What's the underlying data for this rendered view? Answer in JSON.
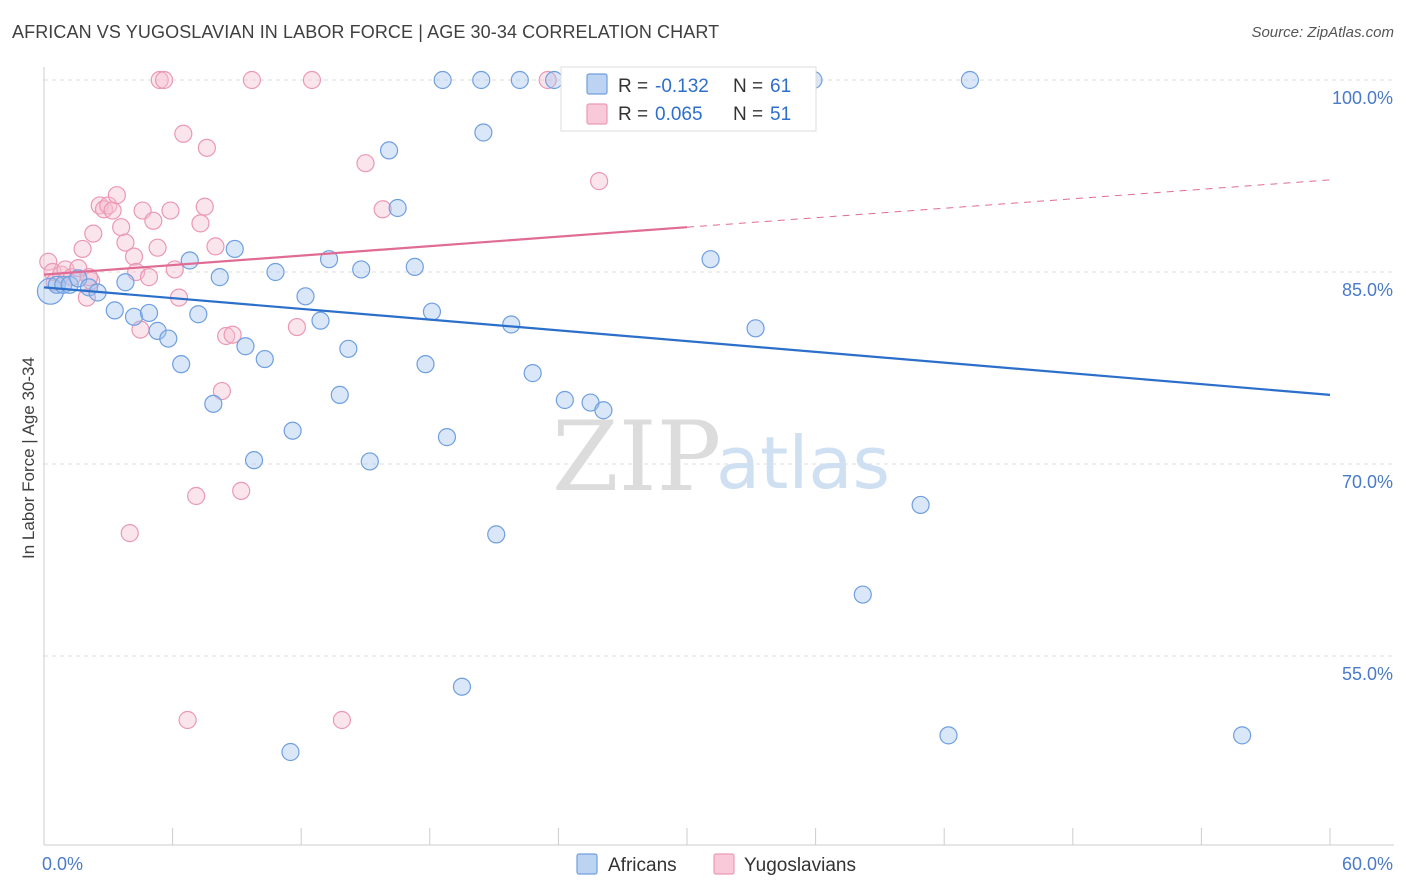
{
  "header": {
    "title": "AFRICAN VS YUGOSLAVIAN IN LABOR FORCE | AGE 30-34 CORRELATION CHART",
    "source": "Source: ZipAtlas.com"
  },
  "watermark": {
    "zip": "ZIP",
    "atlas": "atlas"
  },
  "legend": {
    "rows": [
      {
        "r_label": "R =",
        "r_value": "-0.132",
        "n_label": "N =",
        "n_value": "61"
      },
      {
        "r_label": "R =",
        "r_value": "0.065",
        "n_label": "N =",
        "n_value": "51"
      }
    ]
  },
  "chart_data": {
    "type": "scatter",
    "title": "AFRICAN VS YUGOSLAVIAN IN LABOR FORCE | AGE 30-34 CORRELATION CHART",
    "xlabel": "",
    "ylabel": "In Labor Force | Age 30-34",
    "xlim": [
      0,
      60
    ],
    "ylim": [
      40,
      102
    ],
    "x_tick_labels": [
      {
        "value": 0,
        "label": "0.0%"
      },
      {
        "value": 60,
        "label": "60.0%"
      }
    ],
    "y_tick_labels": [
      {
        "value": 100,
        "label": "100.0%"
      },
      {
        "value": 85,
        "label": "85.0%"
      },
      {
        "value": 70,
        "label": "70.0%"
      },
      {
        "value": 55,
        "label": "55.0%"
      }
    ],
    "grid": true,
    "legend_position": "top-center",
    "colors": {
      "africans": "#5b8fd8",
      "yugoslavians": "#ec8fae",
      "africans_line": "#2b6fcb",
      "yugoslavians_line": "#e06b94"
    },
    "series": [
      {
        "name": "Africans",
        "r": -0.132,
        "n": 61,
        "trend": {
          "x0": 0,
          "y0": 83.8,
          "x1": 60,
          "y1": 75.4,
          "dashed_from": null
        },
        "points": [
          [
            0.3,
            83.5
          ],
          [
            0.6,
            84.0
          ],
          [
            0.9,
            84.0
          ],
          [
            1.2,
            84.0
          ],
          [
            1.6,
            84.5
          ],
          [
            2.1,
            83.8
          ],
          [
            2.5,
            83.4
          ],
          [
            3.3,
            82.0
          ],
          [
            3.8,
            84.2
          ],
          [
            4.2,
            81.5
          ],
          [
            4.9,
            81.8
          ],
          [
            5.3,
            80.4
          ],
          [
            5.8,
            79.8
          ],
          [
            6.4,
            77.8
          ],
          [
            6.8,
            85.9
          ],
          [
            7.2,
            81.7
          ],
          [
            7.9,
            74.7
          ],
          [
            8.2,
            84.6
          ],
          [
            8.9,
            86.8
          ],
          [
            9.4,
            79.2
          ],
          [
            9.8,
            70.3
          ],
          [
            10.3,
            78.2
          ],
          [
            10.8,
            85.0
          ],
          [
            11.6,
            72.6
          ],
          [
            12.2,
            83.1
          ],
          [
            12.9,
            81.2
          ],
          [
            13.3,
            86.0
          ],
          [
            13.8,
            75.4
          ],
          [
            14.2,
            79.0
          ],
          [
            14.8,
            85.2
          ],
          [
            15.2,
            70.2
          ],
          [
            16.1,
            94.5
          ],
          [
            16.5,
            90.0
          ],
          [
            17.3,
            85.4
          ],
          [
            17.8,
            77.8
          ],
          [
            18.1,
            81.9
          ],
          [
            18.8,
            72.1
          ],
          [
            19.5,
            52.6
          ],
          [
            20.5,
            95.9
          ],
          [
            21.1,
            64.5
          ],
          [
            21.8,
            80.9
          ],
          [
            22.8,
            77.1
          ],
          [
            24.3,
            75.0
          ],
          [
            25.5,
            74.8
          ],
          [
            26.1,
            74.2
          ],
          [
            28.6,
            100.0
          ],
          [
            31.1,
            86.0
          ],
          [
            33.2,
            80.6
          ],
          [
            35.3,
            100.0
          ],
          [
            35.9,
            100.0
          ],
          [
            38.2,
            59.8
          ],
          [
            40.9,
            66.8
          ],
          [
            42.2,
            48.8
          ],
          [
            43.2,
            100.0
          ],
          [
            55.9,
            48.8
          ],
          [
            18.6,
            100.0
          ],
          [
            20.4,
            100.0
          ],
          [
            22.2,
            100.0
          ],
          [
            23.8,
            100.0
          ],
          [
            26.5,
            100.0
          ],
          [
            11.5,
            47.5
          ]
        ]
      },
      {
        "name": "Yugoslavians",
        "r": 0.065,
        "n": 51,
        "trend": {
          "x0": 0,
          "y0": 84.8,
          "x1": 60,
          "y1": 92.2,
          "dashed_from": 30
        },
        "points": [
          [
            0.2,
            85.8
          ],
          [
            0.4,
            85.0
          ],
          [
            0.5,
            84.2
          ],
          [
            0.8,
            84.8
          ],
          [
            1.0,
            85.2
          ],
          [
            1.3,
            84.6
          ],
          [
            1.6,
            85.3
          ],
          [
            1.8,
            86.8
          ],
          [
            2.0,
            83.0
          ],
          [
            2.2,
            84.3
          ],
          [
            2.3,
            88.0
          ],
          [
            2.6,
            90.2
          ],
          [
            2.8,
            89.9
          ],
          [
            3.0,
            90.2
          ],
          [
            3.2,
            89.8
          ],
          [
            3.4,
            91.0
          ],
          [
            3.6,
            88.5
          ],
          [
            3.8,
            87.3
          ],
          [
            4.0,
            64.6
          ],
          [
            4.2,
            86.2
          ],
          [
            4.3,
            85.0
          ],
          [
            4.5,
            80.5
          ],
          [
            4.6,
            89.8
          ],
          [
            4.9,
            84.6
          ],
          [
            5.1,
            89.0
          ],
          [
            5.3,
            86.9
          ],
          [
            5.4,
            100.0
          ],
          [
            5.6,
            100.0
          ],
          [
            5.9,
            89.8
          ],
          [
            6.1,
            85.2
          ],
          [
            6.3,
            83.0
          ],
          [
            6.5,
            95.8
          ],
          [
            6.7,
            50.0
          ],
          [
            7.1,
            67.5
          ],
          [
            7.3,
            88.8
          ],
          [
            7.5,
            90.1
          ],
          [
            7.6,
            94.7
          ],
          [
            8.0,
            87.0
          ],
          [
            8.3,
            75.7
          ],
          [
            8.5,
            80.0
          ],
          [
            8.8,
            80.1
          ],
          [
            9.2,
            67.9
          ],
          [
            9.7,
            100.0
          ],
          [
            11.8,
            80.7
          ],
          [
            12.5,
            100.0
          ],
          [
            13.9,
            50.0
          ],
          [
            15.0,
            93.5
          ],
          [
            15.8,
            89.9
          ],
          [
            23.5,
            100.0
          ],
          [
            25.9,
            92.1
          ],
          [
            2.1,
            84.6
          ]
        ]
      }
    ]
  }
}
